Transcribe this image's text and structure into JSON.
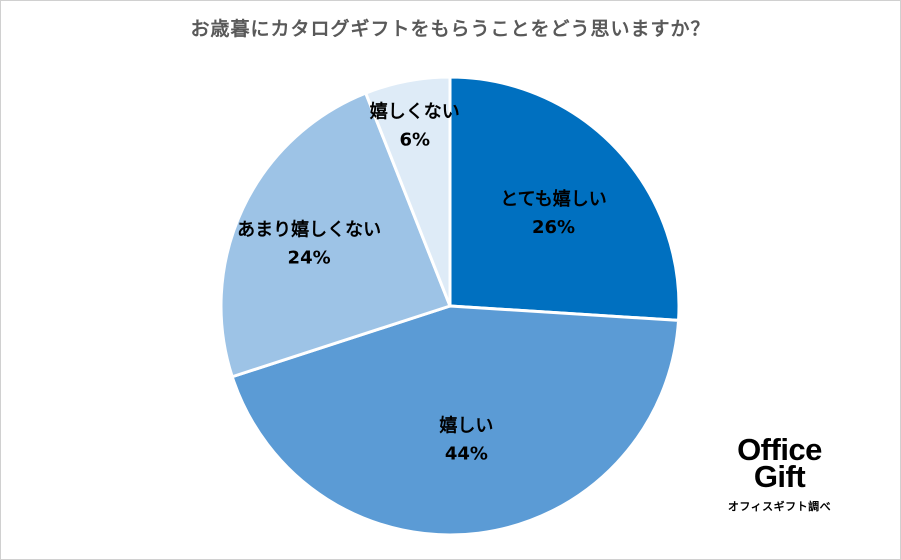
{
  "chart_data": {
    "type": "pie",
    "title": "お歳暮にカタログギフトをもらうことをどう思いますか？",
    "slices": [
      {
        "label": "とても嬉しい",
        "value": 26,
        "value_label": "26%",
        "color": "#0070c0"
      },
      {
        "label": "嬉しい",
        "value": 44,
        "value_label": "44%",
        "color": "#5b9bd5"
      },
      {
        "label": "あまり嬉しくない",
        "value": 24,
        "value_label": "24%",
        "color": "#9dc3e6"
      },
      {
        "label": "嬉しくない",
        "value": 6,
        "value_label": "6%",
        "color": "#deebf7"
      }
    ],
    "start": "12 o'clock",
    "direction": "clockwise"
  },
  "logo": {
    "line1": "Office",
    "line2": "Gift",
    "sub": "オフィスギフト調べ"
  },
  "colors": {
    "title": "#595959",
    "border": "#d0d0d0",
    "slice_edge": "#ffffff"
  }
}
